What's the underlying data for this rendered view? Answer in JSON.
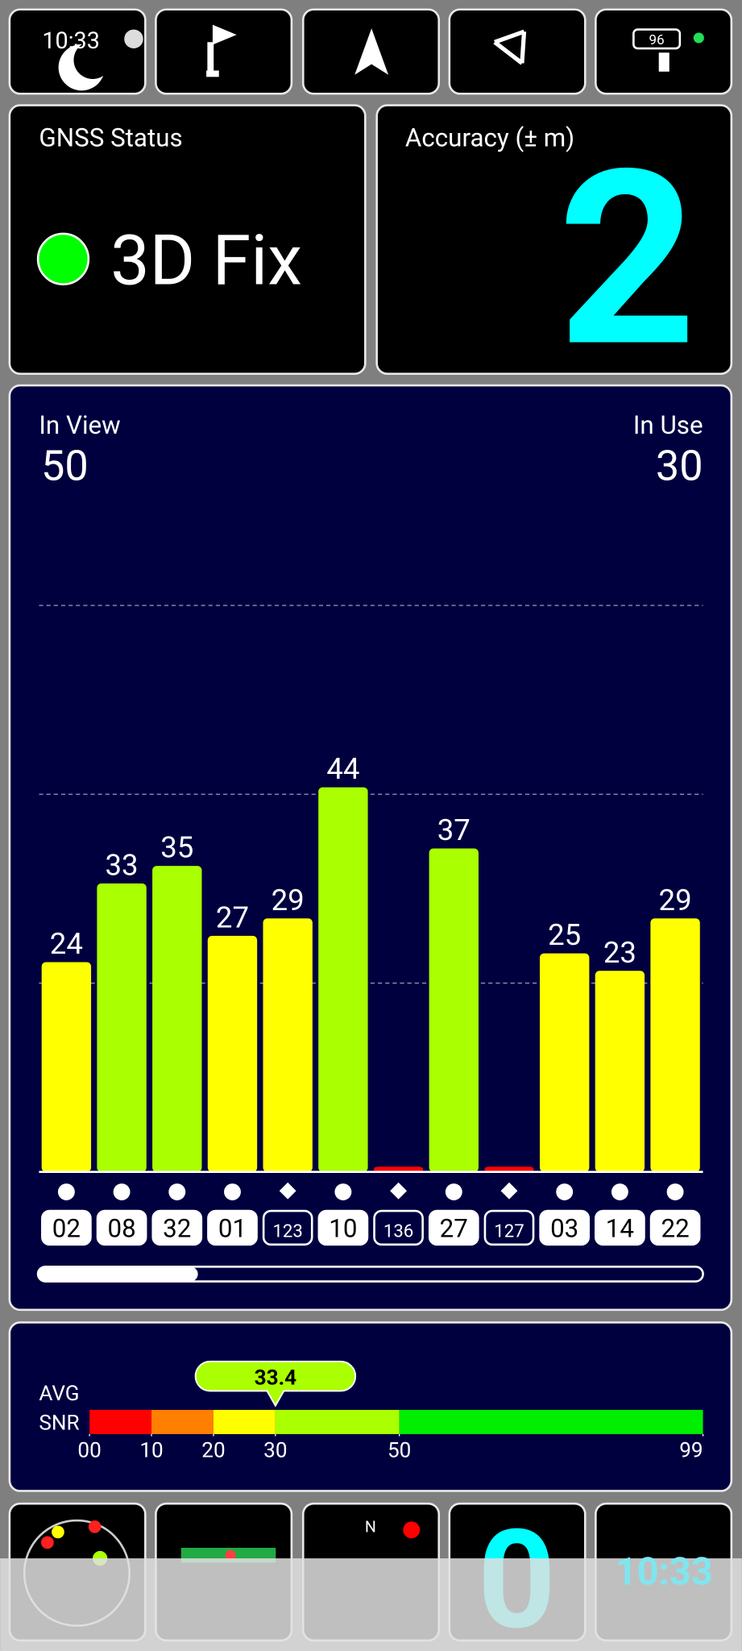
{
  "status_bar": {
    "time": "10:33",
    "battery": "96"
  },
  "gnss_status": {
    "title": "GNSS Status",
    "fix": "3D Fix"
  },
  "accuracy": {
    "title": "Accuracy (± m)",
    "value": 2
  },
  "satellites": {
    "in_view_label": "In View",
    "in_view": 50,
    "in_use_label": "In Use",
    "in_use": 30
  },
  "chart_data": {
    "type": "bar",
    "categories": [
      "02",
      "08",
      "32",
      "01",
      "123",
      "10",
      "136",
      "27",
      "127",
      "03",
      "14",
      "22"
    ],
    "values": [
      24,
      33,
      35,
      27,
      29,
      44,
      0.6,
      37,
      0.6,
      25,
      23,
      29
    ],
    "value_labels": [
      "24",
      "33",
      "35",
      "27",
      "29",
      "44",
      null,
      "37",
      null,
      "25",
      "23",
      "29"
    ],
    "colors": [
      "#ffff00",
      "#aaff00",
      "#aaff00",
      "#ffff00",
      "#ffff00",
      "#aaff00",
      "#ff0000",
      "#aaff00",
      "#ff0000",
      "#ffff00",
      "#ffff00",
      "#ffff00"
    ],
    "markers": [
      "circle",
      "circle",
      "circle",
      "circle",
      "diamond",
      "circle",
      "diamond",
      "circle",
      "diamond",
      "circle",
      "circle",
      "circle"
    ],
    "used": [
      true,
      true,
      true,
      true,
      false,
      true,
      false,
      true,
      false,
      true,
      true,
      true
    ],
    "ylim": [
      0,
      76
    ],
    "grid_lines": [
      21.6,
      43.2,
      64.8
    ]
  },
  "avg_snr": {
    "label_1": "AVG",
    "label_2": "SNR",
    "value": 33.4,
    "xlim": [
      0,
      99
    ],
    "xticks": [
      {
        "value": 0,
        "label": "00"
      },
      10,
      20,
      30,
      50,
      99
    ],
    "bands": [
      {
        "from": 0,
        "to": 10,
        "color": "#ff0000"
      },
      {
        "from": 10,
        "to": 20,
        "color": "#ff8000"
      },
      {
        "from": 20,
        "to": 30,
        "color": "#ffff00"
      },
      {
        "from": 30,
        "to": 50,
        "color": "#aaff00"
      },
      {
        "from": 50,
        "to": 99,
        "color": "#00ee00"
      }
    ],
    "marker_color": "#aaff00"
  },
  "bottom_bar": {
    "compass_north": "N",
    "speed": 0,
    "clock": "10:33"
  }
}
